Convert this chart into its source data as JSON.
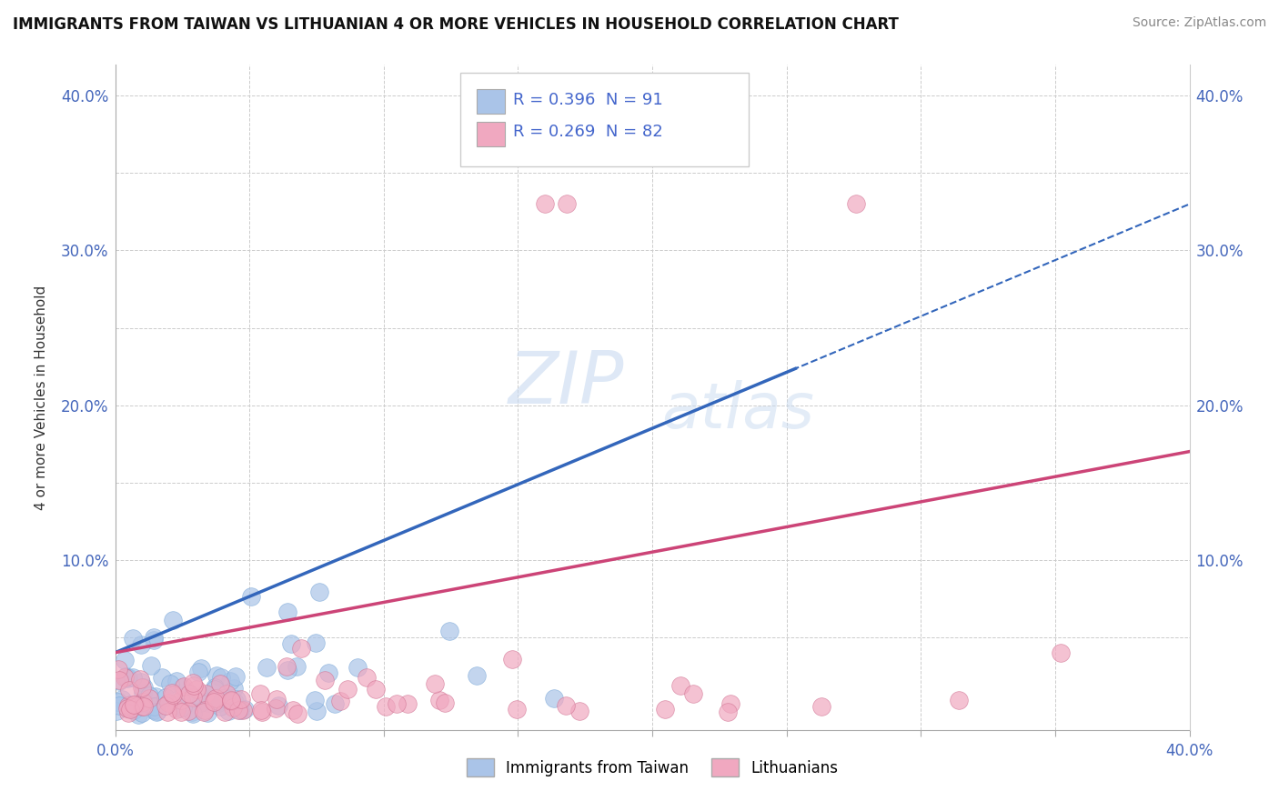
{
  "title": "IMMIGRANTS FROM TAIWAN VS LITHUANIAN 4 OR MORE VEHICLES IN HOUSEHOLD CORRELATION CHART",
  "source": "Source: ZipAtlas.com",
  "ylabel": "4 or more Vehicles in Household",
  "xlim": [
    0.0,
    0.4
  ],
  "ylim": [
    -0.01,
    0.42
  ],
  "xticks": [
    0.0,
    0.05,
    0.1,
    0.15,
    0.2,
    0.25,
    0.3,
    0.35,
    0.4
  ],
  "yticks": [
    0.0,
    0.05,
    0.1,
    0.15,
    0.2,
    0.25,
    0.3,
    0.35,
    0.4
  ],
  "taiwan_color": "#aac4e8",
  "taiwanese_edge": "#7aa8d8",
  "lithuanian_color": "#f0a8c0",
  "lithuanian_edge": "#d07090",
  "taiwan_line_color": "#3366bb",
  "lithuanian_line_color": "#cc4477",
  "taiwan_R": 0.396,
  "taiwan_N": 91,
  "lithuanian_R": 0.269,
  "lithuanian_N": 82,
  "watermark_zip": "ZIP",
  "watermark_atlas": "atlas",
  "legend_text_color": "#4466cc",
  "background_color": "#ffffff",
  "grid_color": "#cccccc"
}
